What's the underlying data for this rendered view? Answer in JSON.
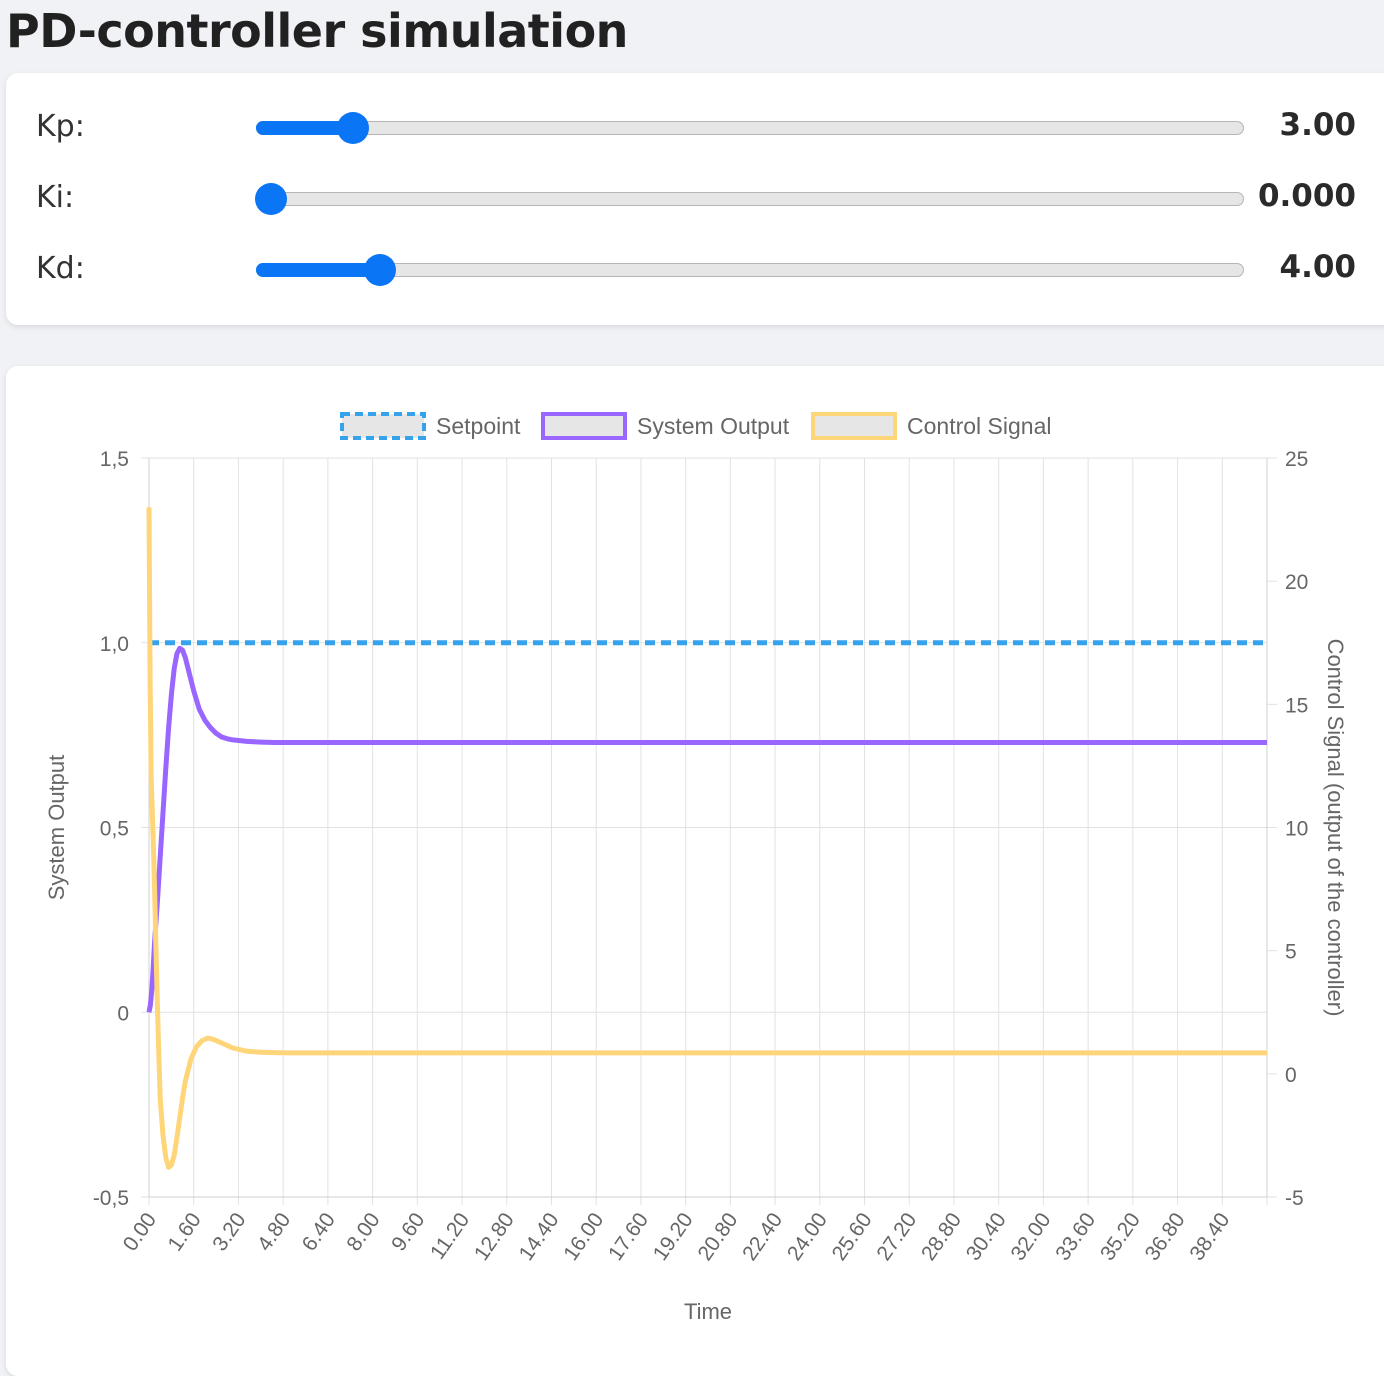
{
  "page": {
    "title": "PD-controller simulation"
  },
  "controls": [
    {
      "id": "kp",
      "label": "Kp:",
      "value": 3.0,
      "display": "3.00",
      "min": 0,
      "max": 35
    },
    {
      "id": "ki",
      "label": "Ki:",
      "value": 0.0,
      "display": "0.000",
      "min": 0,
      "max": 1
    },
    {
      "id": "kd",
      "label": "Kd:",
      "value": 4.0,
      "display": "4.00",
      "min": 0,
      "max": 35
    }
  ],
  "colors": {
    "setpoint": "#36a2eb",
    "output": "#9966ff",
    "control": "#ffd57a",
    "slider": "#0a75f5",
    "legend_fill": "#e6e6e6"
  },
  "chart_data": {
    "type": "line",
    "xlabel": "Time",
    "ylabel": "System Output",
    "y2label": "Control Signal (output of the controller)",
    "xlim": [
      0,
      40
    ],
    "x_ticks": [
      "0.00",
      "1.60",
      "3.20",
      "4.80",
      "6.40",
      "8.00",
      "9.60",
      "11.20",
      "12.80",
      "14.40",
      "16.00",
      "17.60",
      "19.20",
      "20.80",
      "22.40",
      "24.00",
      "25.60",
      "27.20",
      "28.80",
      "30.40",
      "32.00",
      "33.60",
      "35.20",
      "36.80",
      "38.40"
    ],
    "ylim": [
      -0.5,
      1.5
    ],
    "y_ticks": [
      "-0,5",
      "0",
      "0,5",
      "1,0",
      "1,5"
    ],
    "y2lim": [
      -5,
      25
    ],
    "y2_ticks": [
      "-5",
      "0",
      "5",
      "10",
      "15",
      "20",
      "25"
    ],
    "grid": true,
    "legend": "top",
    "series": [
      {
        "name": "Setpoint",
        "axis": "left",
        "style": "dashed",
        "x": [
          0,
          40
        ],
        "y": [
          1.0,
          1.0
        ]
      },
      {
        "name": "System Output",
        "axis": "left",
        "style": "solid",
        "x": [
          0,
          0.05,
          0.1,
          0.15,
          0.2,
          0.3,
          0.4,
          0.5,
          0.6,
          0.7,
          0.8,
          0.9,
          1.0,
          1.1,
          1.2,
          1.3,
          1.4,
          1.5,
          1.6,
          1.8,
          2.0,
          2.2,
          2.4,
          2.6,
          2.8,
          3.0,
          3.5,
          4.0,
          4.5,
          5.0,
          6.0,
          7.0,
          8.0,
          10.0,
          20.0,
          30.0,
          40.0
        ],
        "y": [
          0,
          0.02,
          0.06,
          0.12,
          0.19,
          0.3,
          0.42,
          0.54,
          0.66,
          0.77,
          0.86,
          0.93,
          0.97,
          0.985,
          0.98,
          0.96,
          0.93,
          0.9,
          0.87,
          0.82,
          0.79,
          0.77,
          0.755,
          0.745,
          0.74,
          0.737,
          0.733,
          0.731,
          0.73,
          0.73,
          0.73,
          0.73,
          0.73,
          0.73,
          0.73,
          0.73,
          0.73
        ]
      },
      {
        "name": "Control Signal",
        "axis": "right",
        "style": "solid",
        "x": [
          0,
          0.04,
          0.08,
          0.15,
          0.2,
          0.25,
          0.3,
          0.35,
          0.4,
          0.5,
          0.6,
          0.7,
          0.8,
          0.9,
          1.0,
          1.1,
          1.2,
          1.3,
          1.5,
          1.7,
          1.9,
          2.1,
          2.3,
          2.6,
          3.0,
          3.5,
          4.0,
          4.5,
          5.0,
          6.0,
          8.0,
          10.0,
          20.0,
          30.0,
          40.0
        ],
        "y": [
          23,
          16,
          12,
          9.5,
          7.5,
          5,
          2.8,
          0.8,
          -1.0,
          -2.5,
          -3.4,
          -3.8,
          -3.7,
          -3.3,
          -2.6,
          -1.8,
          -1.0,
          -0.3,
          0.6,
          1.1,
          1.35,
          1.45,
          1.4,
          1.25,
          1.05,
          0.92,
          0.88,
          0.86,
          0.85,
          0.85,
          0.85,
          0.85,
          0.85,
          0.85,
          0.85
        ]
      }
    ]
  }
}
